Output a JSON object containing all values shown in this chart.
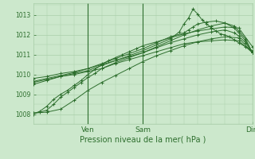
{
  "title": "Pression niveau de la mer( hPa )",
  "ylabel_vals": [
    1008,
    1009,
    1010,
    1011,
    1012,
    1013
  ],
  "ylim": [
    1007.5,
    1013.6
  ],
  "xlim": [
    0,
    96
  ],
  "xtick_positions": [
    24,
    48,
    96
  ],
  "xtick_labels": [
    "Ven",
    "Sam",
    "Dim"
  ],
  "bg_color": "#cce8cc",
  "grid_color": "#aacfaa",
  "line_color": "#2d6e2d",
  "series": [
    [
      0,
      1008.0,
      3,
      1008.15,
      6,
      1008.4,
      9,
      1008.75,
      12,
      1009.0,
      15,
      1009.2,
      18,
      1009.45,
      21,
      1009.7,
      24,
      1010.0,
      27,
      1010.25,
      30,
      1010.5,
      33,
      1010.7,
      36,
      1010.85,
      39,
      1011.0,
      42,
      1011.15,
      45,
      1011.3,
      48,
      1011.45,
      54,
      1011.65,
      60,
      1011.85,
      66,
      1012.05,
      72,
      1012.2,
      78,
      1012.3,
      84,
      1012.4,
      90,
      1012.35,
      96,
      1011.4
    ],
    [
      0,
      1009.5,
      6,
      1009.7,
      12,
      1009.9,
      18,
      1010.05,
      24,
      1010.2,
      30,
      1010.45,
      36,
      1010.7,
      42,
      1010.95,
      48,
      1011.2,
      54,
      1011.5,
      60,
      1011.8,
      64,
      1012.15,
      66,
      1012.55,
      68,
      1012.85,
      70,
      1013.3,
      72,
      1013.05,
      74,
      1012.75,
      76,
      1012.55,
      78,
      1012.35,
      80,
      1012.2,
      82,
      1012.05,
      84,
      1012.0,
      86,
      1011.9,
      88,
      1011.75,
      90,
      1011.6,
      93,
      1011.4,
      96,
      1011.2
    ],
    [
      0,
      1009.65,
      6,
      1009.8,
      12,
      1009.95,
      18,
      1010.1,
      24,
      1010.3,
      30,
      1010.55,
      36,
      1010.8,
      42,
      1011.05,
      48,
      1011.3,
      54,
      1011.6,
      60,
      1011.9,
      66,
      1012.1,
      68,
      1012.25,
      70,
      1012.4,
      72,
      1012.55,
      76,
      1012.65,
      80,
      1012.7,
      84,
      1012.6,
      88,
      1012.35,
      90,
      1012.1,
      93,
      1011.7,
      96,
      1011.1
    ],
    [
      0,
      1009.8,
      6,
      1009.9,
      12,
      1010.05,
      18,
      1010.15,
      24,
      1010.3,
      30,
      1010.5,
      36,
      1010.7,
      42,
      1010.9,
      48,
      1011.1,
      54,
      1011.35,
      60,
      1011.6,
      66,
      1011.8,
      72,
      1012.0,
      78,
      1012.15,
      84,
      1012.25,
      88,
      1012.1,
      90,
      1011.95,
      93,
      1011.6,
      96,
      1011.1
    ],
    [
      0,
      1009.6,
      6,
      1009.75,
      12,
      1009.9,
      18,
      1010.0,
      24,
      1010.15,
      30,
      1010.3,
      36,
      1010.55,
      42,
      1010.75,
      48,
      1010.95,
      54,
      1011.15,
      60,
      1011.35,
      66,
      1011.55,
      72,
      1011.65,
      78,
      1011.7,
      84,
      1011.75,
      90,
      1011.7,
      96,
      1011.1
    ],
    [
      0,
      1008.05,
      3,
      1008.1,
      6,
      1008.2,
      9,
      1008.5,
      12,
      1008.85,
      15,
      1009.1,
      18,
      1009.35,
      21,
      1009.6,
      24,
      1009.85,
      27,
      1010.05,
      30,
      1010.3,
      36,
      1010.6,
      42,
      1010.85,
      48,
      1011.1,
      54,
      1011.4,
      60,
      1011.7,
      66,
      1012.0,
      72,
      1012.25,
      78,
      1012.45,
      84,
      1012.6,
      88,
      1012.45,
      90,
      1012.2,
      93,
      1011.8,
      96,
      1011.1
    ],
    [
      0,
      1008.05,
      6,
      1008.1,
      12,
      1008.25,
      18,
      1008.7,
      24,
      1009.2,
      30,
      1009.6,
      36,
      1009.95,
      42,
      1010.3,
      48,
      1010.65,
      54,
      1010.95,
      60,
      1011.2,
      66,
      1011.45,
      72,
      1011.65,
      78,
      1011.8,
      84,
      1011.9,
      90,
      1011.85,
      96,
      1011.1
    ]
  ],
  "figsize": [
    3.2,
    2.0
  ],
  "dpi": 100
}
